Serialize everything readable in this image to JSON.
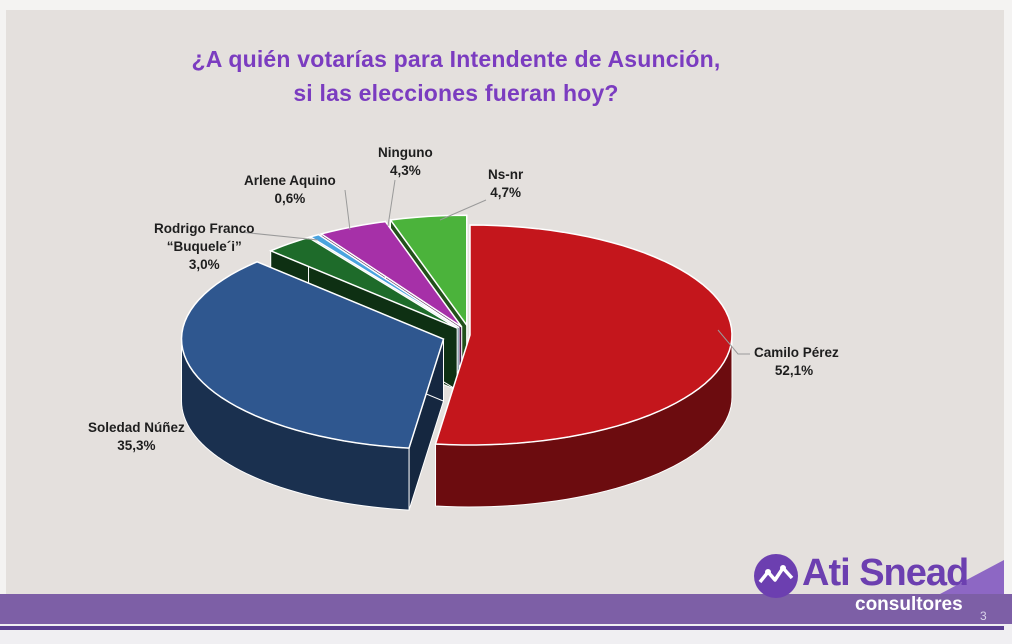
{
  "title_line1": "¿A quién votarías para Intendente de Asunción,",
  "title_line2": "si las elecciones fueran hoy?",
  "chart_data": {
    "type": "pie",
    "exploded": true,
    "three_d": true,
    "slices": [
      {
        "label": "Camilo Pérez",
        "value_label": "52,1%",
        "value": 52.1,
        "color": "#c4161c"
      },
      {
        "label": "Soledad Núñez",
        "value_label": "35,3%",
        "value": 35.3,
        "color": "#2f578f"
      },
      {
        "label_line1": "Rodrigo Franco",
        "label_line2": "“Buquele´i”",
        "value_label": "3,0%",
        "value": 3.0,
        "color": "#1e6b2a"
      },
      {
        "label": "Arlene Aquino",
        "value_label": "0,6%",
        "value": 0.6,
        "color": "#4aa3df"
      },
      {
        "label": "Ninguno",
        "value_label": "4,3%",
        "value": 4.3,
        "color": "#a630a8"
      },
      {
        "label": "Ns-nr",
        "value_label": "4,7%",
        "value": 4.7,
        "color": "#4bb33b"
      }
    ]
  },
  "logo": {
    "name": "Ati Snead",
    "sub": "consultores"
  },
  "page_number": "3"
}
